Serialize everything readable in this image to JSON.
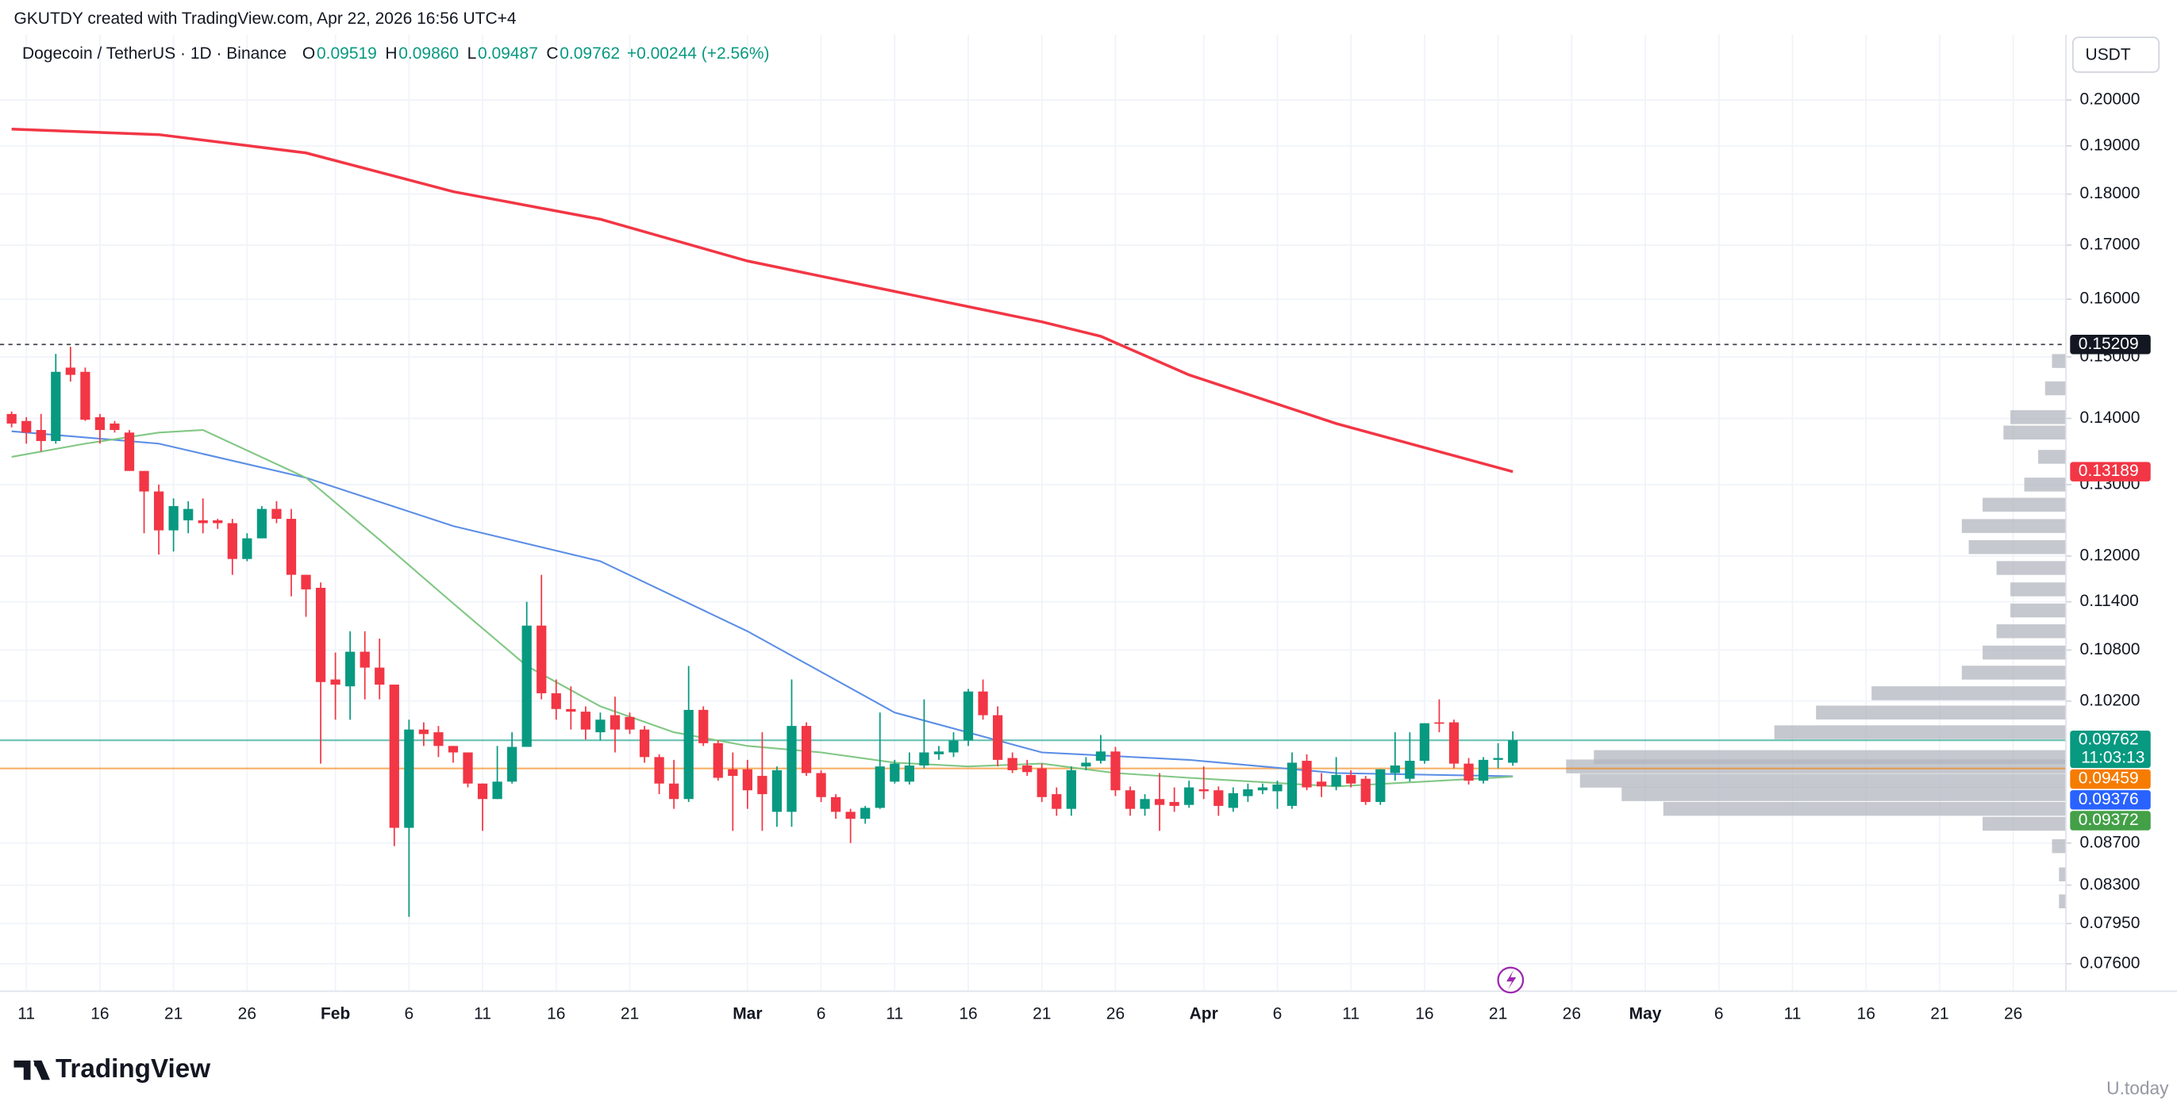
{
  "header": {
    "credit": "GKUTDY created with TradingView.com, Apr 22, 2026 16:56 UTC+4",
    "symbol": "Dogecoin / TetherUS · 1D · Binance",
    "ohlc": [
      {
        "key": "O",
        "value": "0.09519"
      },
      {
        "key": "H",
        "value": "0.09860"
      },
      {
        "key": "L",
        "value": "0.09487"
      },
      {
        "key": "C",
        "value": "0.09762"
      }
    ],
    "change": "+0.00244 (+2.56%)",
    "currency": "USDT"
  },
  "footer": {
    "logo": "TradingView",
    "watermark": "U.today"
  },
  "chart_data": {
    "type": "candlestick",
    "log_scale": true,
    "grid": true,
    "up_color": "#089981",
    "down_color": "#f23645",
    "xlim": [
      -1.79,
      138.58
    ],
    "xticks": [
      {
        "value": 0,
        "label": "11"
      },
      {
        "value": 5,
        "label": "16"
      },
      {
        "value": 10,
        "label": "21"
      },
      {
        "value": 15,
        "label": "26"
      },
      {
        "value": 21,
        "label": "Feb"
      },
      {
        "value": 26,
        "label": "6"
      },
      {
        "value": 31,
        "label": "11"
      },
      {
        "value": 36,
        "label": "16"
      },
      {
        "value": 41,
        "label": "21"
      },
      {
        "value": 49,
        "label": "Mar"
      },
      {
        "value": 54,
        "label": "6"
      },
      {
        "value": 59,
        "label": "11"
      },
      {
        "value": 64,
        "label": "16"
      },
      {
        "value": 69,
        "label": "21"
      },
      {
        "value": 74,
        "label": "26"
      },
      {
        "value": 80,
        "label": "Apr"
      },
      {
        "value": 85,
        "label": "6"
      },
      {
        "value": 90,
        "label": "11"
      },
      {
        "value": 95,
        "label": "16"
      },
      {
        "value": 100,
        "label": "21"
      },
      {
        "value": 105,
        "label": "26"
      },
      {
        "value": 110,
        "label": "May"
      },
      {
        "value": 115,
        "label": "6"
      },
      {
        "value": 120,
        "label": "11"
      },
      {
        "value": 125,
        "label": "16"
      },
      {
        "value": 130,
        "label": "21"
      },
      {
        "value": 135,
        "label": "26"
      }
    ],
    "ylim": [
      0.0737,
      0.2152
    ],
    "yticks": [
      {
        "value": 0.2,
        "label": "0.20000"
      },
      {
        "value": 0.19,
        "label": "0.19000"
      },
      {
        "value": 0.18,
        "label": "0.18000"
      },
      {
        "value": 0.17,
        "label": "0.17000"
      },
      {
        "value": 0.16,
        "label": "0.16000"
      },
      {
        "value": 0.15,
        "label": "0.15000"
      },
      {
        "value": 0.14,
        "label": "0.14000"
      },
      {
        "value": 0.13,
        "label": "0.13000"
      },
      {
        "value": 0.12,
        "label": "0.12000"
      },
      {
        "value": 0.114,
        "label": "0.11400"
      },
      {
        "value": 0.108,
        "label": "0.10800"
      },
      {
        "value": 0.102,
        "label": "0.10200"
      },
      {
        "value": 0.087,
        "label": "0.08700"
      },
      {
        "value": 0.083,
        "label": "0.08300"
      },
      {
        "value": 0.0795,
        "label": "0.07950"
      },
      {
        "value": 0.076,
        "label": "0.07600"
      }
    ],
    "x": [
      -1,
      0,
      1,
      2,
      3,
      4,
      5,
      6,
      7,
      8,
      9,
      10,
      11,
      12,
      13,
      14,
      15,
      16,
      17,
      18,
      19,
      20,
      21,
      22,
      23,
      24,
      25,
      26,
      27,
      28,
      29,
      30,
      31,
      32,
      33,
      34,
      35,
      36,
      37,
      38,
      39,
      40,
      41,
      42,
      43,
      44,
      45,
      46,
      47,
      48,
      49,
      50,
      51,
      52,
      53,
      54,
      55,
      56,
      57,
      58,
      59,
      60,
      61,
      62,
      63,
      64,
      65,
      66,
      67,
      68,
      69,
      70,
      71,
      72,
      73,
      74,
      75,
      76,
      77,
      78,
      79,
      80,
      81,
      82,
      83,
      84,
      85,
      86,
      87,
      88,
      89,
      90,
      91,
      92,
      93,
      94,
      95,
      96,
      97,
      98,
      99,
      100,
      101
    ],
    "open": [
      0.1407,
      0.1396,
      0.1382,
      0.1365,
      0.1482,
      0.1475,
      0.1402,
      0.1392,
      0.1378,
      0.132,
      0.129,
      0.1235,
      0.1249,
      0.1249,
      0.1249,
      0.1245,
      0.1196,
      0.1224,
      0.1265,
      0.1251,
      0.1175,
      0.1158,
      0.1045,
      0.1037,
      0.1078,
      0.1059,
      0.1039,
      0.0885,
      0.0988,
      0.0985,
      0.097,
      0.0963,
      0.093,
      0.0914,
      0.0932,
      0.0969,
      0.111,
      0.1029,
      0.1011,
      0.1008,
      0.0985,
      0.1004,
      0.1002,
      0.0988,
      0.0958,
      0.093,
      0.0914,
      0.101,
      0.0973,
      0.0945,
      0.0945,
      0.0938,
      0.0901,
      0.0901,
      0.0992,
      0.0941,
      0.0916,
      0.0901,
      0.0894,
      0.0905,
      0.0932,
      0.0932,
      0.0949,
      0.0961,
      0.0963,
      0.0976,
      0.1031,
      0.1004,
      0.0957,
      0.0949,
      0.0946,
      0.0919,
      0.0904,
      0.0948,
      0.0954,
      0.0964,
      0.0923,
      0.0904,
      0.0914,
      0.0911,
      0.0908,
      0.0924,
      0.0923,
      0.0905,
      0.0917,
      0.0923,
      0.0922,
      0.0907,
      0.0954,
      0.0932,
      0.0927,
      0.0939,
      0.0935,
      0.0911,
      0.0941,
      0.0935,
      0.0954,
      0.0996,
      0.0996,
      0.0951,
      0.0933,
      0.0955,
      0.09519
    ],
    "high": [
      0.1411,
      0.1402,
      0.1407,
      0.1505,
      0.1517,
      0.1482,
      0.1407,
      0.1396,
      0.1382,
      0.132,
      0.13,
      0.128,
      0.1276,
      0.128,
      0.1251,
      0.1251,
      0.1231,
      0.1269,
      0.1276,
      0.1265,
      0.1175,
      0.1165,
      0.1077,
      0.1103,
      0.1103,
      0.1094,
      0.1039,
      0.0999,
      0.0996,
      0.0992,
      0.097,
      0.0963,
      0.093,
      0.097,
      0.0985,
      0.114,
      0.1175,
      0.1045,
      0.1037,
      0.1014,
      0.1007,
      0.1025,
      0.1007,
      0.0992,
      0.0961,
      0.0955,
      0.1061,
      0.1014,
      0.0976,
      0.0963,
      0.0955,
      0.0985,
      0.0948,
      0.1045,
      0.0996,
      0.0944,
      0.0919,
      0.0904,
      0.0907,
      0.1007,
      0.0955,
      0.0963,
      0.1022,
      0.097,
      0.0985,
      0.1034,
      0.1045,
      0.1014,
      0.0963,
      0.0955,
      0.0951,
      0.0926,
      0.0948,
      0.0958,
      0.0982,
      0.0969,
      0.0927,
      0.0919,
      0.0941,
      0.0926,
      0.0933,
      0.0948,
      0.0927,
      0.0926,
      0.093,
      0.093,
      0.0933,
      0.0963,
      0.0961,
      0.0941,
      0.0958,
      0.0944,
      0.0938,
      0.0945,
      0.0985,
      0.0985,
      0.0995,
      0.1022,
      0.0999,
      0.0957,
      0.0958,
      0.0973,
      0.0986
    ],
    "low": [
      0.1386,
      0.1361,
      0.1349,
      0.1361,
      0.1459,
      0.1396,
      0.1361,
      0.1378,
      0.132,
      0.1231,
      0.1202,
      0.1206,
      0.1231,
      0.1231,
      0.1237,
      0.1175,
      0.1193,
      0.1224,
      0.1245,
      0.1147,
      0.1121,
      0.0951,
      0.0999,
      0.0999,
      0.1022,
      0.1022,
      0.0867,
      0.0801,
      0.097,
      0.0958,
      0.0952,
      0.0926,
      0.0882,
      0.0914,
      0.093,
      0.0969,
      0.1022,
      0.0999,
      0.0988,
      0.0977,
      0.0976,
      0.0963,
      0.0983,
      0.0952,
      0.0919,
      0.0904,
      0.0911,
      0.097,
      0.0933,
      0.0882,
      0.0904,
      0.0882,
      0.0886,
      0.0886,
      0.0938,
      0.0911,
      0.0894,
      0.087,
      0.0889,
      0.0904,
      0.093,
      0.0929,
      0.0946,
      0.0955,
      0.0958,
      0.097,
      0.0999,
      0.0948,
      0.0941,
      0.0938,
      0.0911,
      0.0897,
      0.0897,
      0.0944,
      0.0951,
      0.0917,
      0.0897,
      0.0897,
      0.0882,
      0.0901,
      0.0905,
      0.0914,
      0.0897,
      0.0901,
      0.0911,
      0.0919,
      0.0904,
      0.0904,
      0.0923,
      0.0916,
      0.0923,
      0.0926,
      0.0908,
      0.0908,
      0.0933,
      0.0932,
      0.0951,
      0.0985,
      0.0946,
      0.0929,
      0.093,
      0.0946,
      0.09487
    ],
    "close": [
      0.1392,
      0.1378,
      0.1365,
      0.1475,
      0.147,
      0.1398,
      0.1382,
      0.1382,
      0.132,
      0.129,
      0.1235,
      0.1269,
      0.1265,
      0.1245,
      0.1245,
      0.1196,
      0.1224,
      0.1265,
      0.1251,
      0.1175,
      0.1156,
      0.1042,
      0.1039,
      0.1078,
      0.1059,
      0.1039,
      0.0885,
      0.0988,
      0.0983,
      0.097,
      0.0963,
      0.093,
      0.0914,
      0.0932,
      0.0969,
      0.111,
      0.1029,
      0.1011,
      0.1008,
      0.0988,
      0.0999,
      0.0988,
      0.0988,
      0.0958,
      0.093,
      0.0914,
      0.101,
      0.0973,
      0.0936,
      0.0938,
      0.0923,
      0.0919,
      0.0944,
      0.0992,
      0.0941,
      0.0916,
      0.0901,
      0.0894,
      0.0905,
      0.0948,
      0.0951,
      0.0949,
      0.0963,
      0.0964,
      0.0976,
      0.1031,
      0.1004,
      0.0955,
      0.0944,
      0.0942,
      0.0916,
      0.0904,
      0.0944,
      0.0952,
      0.0964,
      0.0923,
      0.0904,
      0.0914,
      0.0908,
      0.0907,
      0.0926,
      0.0922,
      0.0907,
      0.092,
      0.0924,
      0.0926,
      0.0929,
      0.0952,
      0.0926,
      0.0927,
      0.0939,
      0.093,
      0.0911,
      0.0945,
      0.0949,
      0.0954,
      0.0995,
      0.0995,
      0.0951,
      0.0933,
      0.0955,
      0.0957,
      0.09762
    ],
    "series": [
      {
        "color": "#f23645",
        "x": [
          -1,
          9,
          19,
          29,
          39,
          49,
          59,
          69,
          73,
          79,
          89,
          101
        ],
        "values": [
          0.1936,
          0.1924,
          0.1885,
          0.1805,
          0.175,
          0.167,
          0.1614,
          0.156,
          0.1535,
          0.147,
          0.1392,
          0.13189
        ]
      },
      {
        "color": "#5b8ee6",
        "x": [
          -1,
          9,
          19,
          29,
          39,
          49,
          59,
          69,
          79,
          89,
          101
        ],
        "values": [
          0.138,
          0.1361,
          0.131,
          0.1241,
          0.1193,
          0.1103,
          0.1007,
          0.0963,
          0.0955,
          0.0941,
          0.09376
        ]
      },
      {
        "color": "#81c784",
        "x": [
          -1,
          4,
          9,
          12,
          19,
          24,
          29,
          34,
          39,
          44,
          49,
          54,
          59,
          64,
          69,
          74,
          79,
          89,
          101
        ],
        "values": [
          0.1341,
          0.1361,
          0.1378,
          0.1382,
          0.131,
          0.1222,
          0.1138,
          0.1061,
          0.1014,
          0.0985,
          0.097,
          0.0963,
          0.0952,
          0.0948,
          0.0951,
          0.0941,
          0.0936,
          0.0927,
          0.09372
        ]
      }
    ],
    "price_labels": [
      {
        "value": 0.15209,
        "label": "0.15209",
        "color": "#131722",
        "line": "dashed"
      },
      {
        "value": 0.13189,
        "label": "0.13189",
        "color": "#f23645"
      },
      {
        "value": 0.09762,
        "label": "0.09762",
        "sublabel": "11:03:13",
        "color": "#089981",
        "line": "solid"
      },
      {
        "value": 0.09459,
        "label": "0.09459",
        "color": "#f57c00",
        "line": "solid"
      },
      {
        "value": 0.09376,
        "label": "0.09376",
        "color": "#2962ff"
      },
      {
        "value": 0.09372,
        "label": "0.09372",
        "color": "#43a047"
      }
    ],
    "volume_profile": {
      "color": "#b2b5be",
      "prices": [
        0.1493,
        0.1448,
        0.1402,
        0.1378,
        0.1341,
        0.13,
        0.1271,
        0.1241,
        0.1212,
        0.1184,
        0.1156,
        0.1129,
        0.1103,
        0.1077,
        0.1053,
        0.1029,
        0.1007,
        0.0985,
        0.0958,
        0.0948,
        0.0933,
        0.0919,
        0.0904,
        0.0889,
        0.0867,
        0.084,
        0.0815
      ],
      "volumes": [
        10,
        15,
        40,
        45,
        20,
        30,
        60,
        75,
        70,
        50,
        40,
        40,
        50,
        60,
        75,
        140,
        180,
        210,
        340,
        360,
        350,
        320,
        290,
        60,
        10,
        5,
        5
      ]
    }
  }
}
